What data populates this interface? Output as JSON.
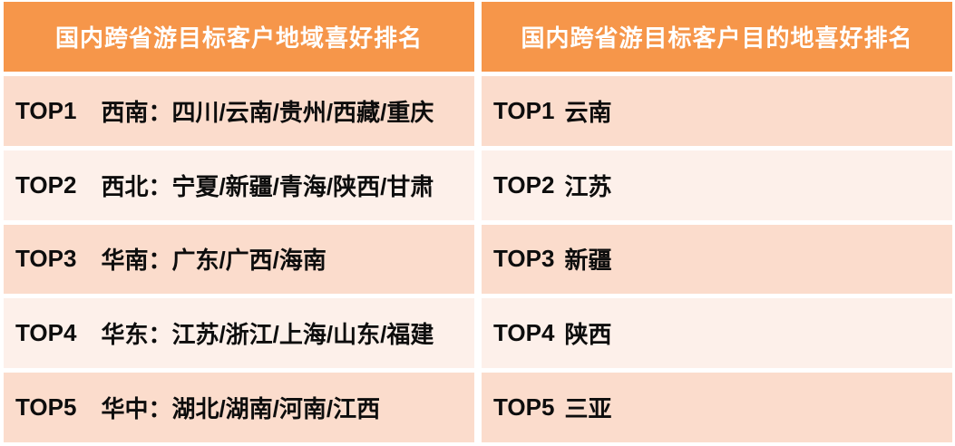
{
  "colors": {
    "accent": "#F6964A",
    "row_odd": "#FBDCCC",
    "row_even": "#FDF0EA",
    "header_text": "#FFFFFF",
    "row_text": "#0D0D0D"
  },
  "columns": [
    {
      "header": "国内跨省游目标客户地域喜好排名",
      "rows": [
        {
          "rank": "TOP1",
          "value": "西南：四川/云南/贵州/西藏/重庆"
        },
        {
          "rank": "TOP2",
          "value": "西北：宁夏/新疆/青海/陕西/甘肃"
        },
        {
          "rank": "TOP3",
          "value": "华南：广东/广西/海南"
        },
        {
          "rank": "TOP4",
          "value": "华东：江苏/浙江/上海/山东/福建"
        },
        {
          "rank": "TOP5",
          "value": "华中：湖北/湖南/河南/江西"
        }
      ]
    },
    {
      "header": "国内跨省游目标客户目的地喜好排名",
      "rows": [
        {
          "rank": "TOP1",
          "value": "云南"
        },
        {
          "rank": "TOP2",
          "value": "江苏"
        },
        {
          "rank": "TOP3",
          "value": "新疆"
        },
        {
          "rank": "TOP4",
          "value": "陕西"
        },
        {
          "rank": "TOP5",
          "value": "三亚"
        }
      ]
    }
  ],
  "chart_data": [
    {
      "type": "table",
      "title": "国内跨省游目标客户地域喜好排名",
      "rows": [
        {
          "rank": "TOP1",
          "value": "西南：四川/云南/贵州/西藏/重庆"
        },
        {
          "rank": "TOP2",
          "value": "西北：宁夏/新疆/青海/陕西/甘肃"
        },
        {
          "rank": "TOP3",
          "value": "华南：广东/广西/海南"
        },
        {
          "rank": "TOP4",
          "value": "华东：江苏/浙江/上海/山东/福建"
        },
        {
          "rank": "TOP5",
          "value": "华中：湖北/湖南/河南/江西"
        }
      ]
    },
    {
      "type": "table",
      "title": "国内跨省游目标客户目的地喜好排名",
      "rows": [
        {
          "rank": "TOP1",
          "value": "云南"
        },
        {
          "rank": "TOP2",
          "value": "江苏"
        },
        {
          "rank": "TOP3",
          "value": "新疆"
        },
        {
          "rank": "TOP4",
          "value": "陕西"
        },
        {
          "rank": "TOP5",
          "value": "三亚"
        }
      ]
    }
  ]
}
